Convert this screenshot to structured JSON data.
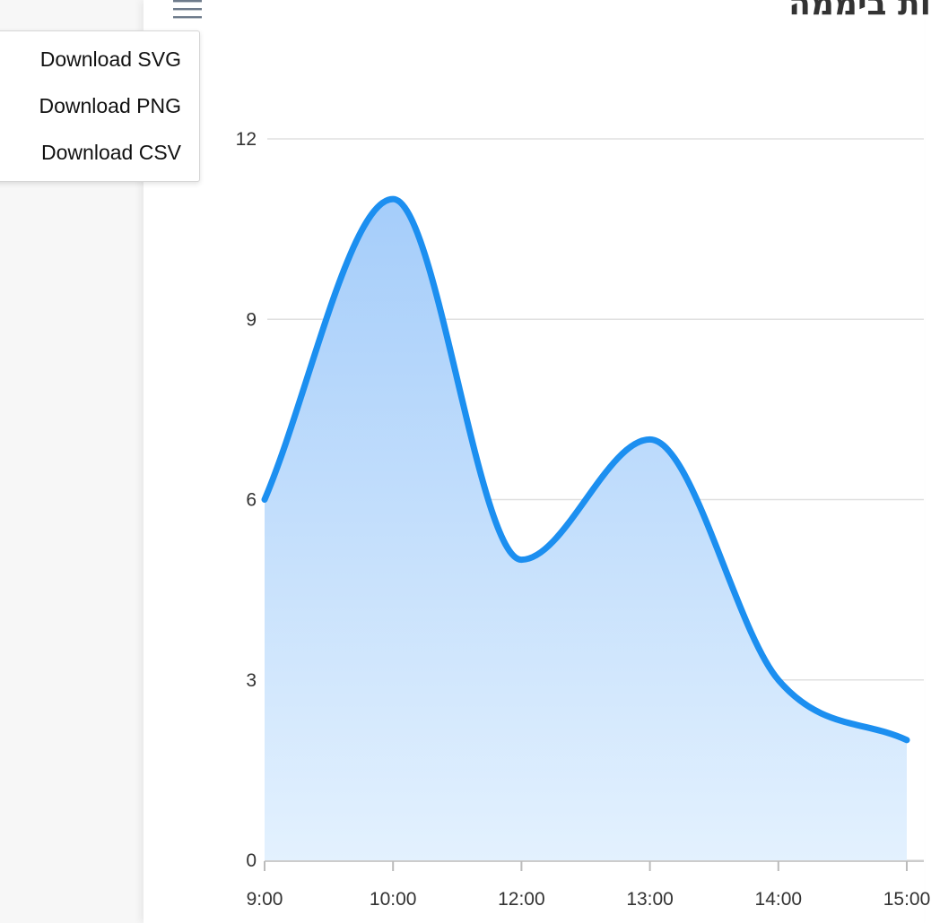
{
  "title": "ות ביממה",
  "menu": {
    "items": [
      {
        "label": "Download SVG"
      },
      {
        "label": "Download PNG"
      },
      {
        "label": "Download CSV"
      }
    ]
  },
  "colors": {
    "series": "#1c8ff0",
    "area_top": "#a5cdfa",
    "area_bottom": "#e3f1fe",
    "grid": "#e0e0e0",
    "menu_icon": "#6e7b8b"
  },
  "icons": {
    "menu": "hamburger-menu-icon"
  },
  "chart_data": {
    "type": "area",
    "curve": "smooth",
    "categories": [
      "9:00",
      "10:00",
      "12:00",
      "13:00",
      "14:00",
      "15:00"
    ],
    "series": [
      {
        "values": [
          6,
          11,
          5,
          7,
          3,
          2
        ]
      }
    ],
    "yticks": [
      "0",
      "3",
      "6",
      "9",
      "12"
    ],
    "ylim": [
      0,
      12
    ],
    "grid": true,
    "legend": "none"
  }
}
